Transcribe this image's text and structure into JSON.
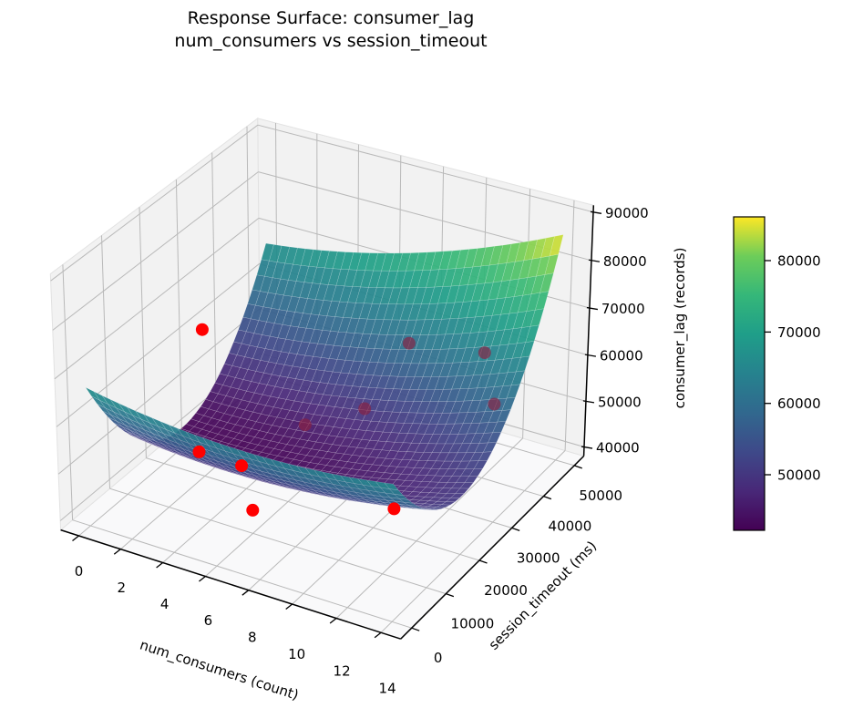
{
  "title": {
    "line1": "Response Surface: consumer_lag",
    "line2": "num_consumers vs session_timeout"
  },
  "chart_data": {
    "type": "surface_3d",
    "view": {
      "elev": 30,
      "azim": -60
    },
    "x_axis": {
      "label": "num_consumers (count)",
      "ticks": [
        0,
        2,
        4,
        6,
        8,
        10,
        12,
        14
      ],
      "data_range": [
        0,
        14
      ],
      "lim": [
        -0.875,
        14.875
      ]
    },
    "y_axis": {
      "label": "session_timeout (ms)",
      "ticks": [
        0,
        10000,
        20000,
        30000,
        40000,
        50000
      ],
      "data_range": [
        0,
        50000
      ],
      "lim": [
        -3125,
        53125
      ]
    },
    "z_axis": {
      "label": "consumer_lag (records)",
      "ticks": [
        40000,
        50000,
        60000,
        70000,
        80000,
        90000
      ],
      "lim": [
        38000,
        91400
      ]
    },
    "surface": {
      "colormap": "viridis",
      "grid_n": 36,
      "model": "consumer_lag = b0 + by*t + byy*t^2 + bxy*c*t + bxx*(c-7.5)^2 (c = num_consumers, t = session_timeout; fitted visually from pixels)",
      "coeffs": {
        "b0": 64000,
        "by": -2.0,
        "byy": 4e-05,
        "bxy": 0.028,
        "bxx": 60
      },
      "approx_value_range": [
        43000,
        87000
      ]
    },
    "scatter": {
      "color": "#ff0000",
      "marker_radius_px": 7,
      "points": [
        {
          "num_consumers": 2,
          "session_timeout": 20000,
          "consumer_lag": 69500,
          "far": false
        },
        {
          "num_consumers": 3.5,
          "session_timeout": 10000,
          "consumer_lag": 52000,
          "far": false
        },
        {
          "num_consumers": 5.5,
          "session_timeout": 10000,
          "consumer_lag": 51800,
          "far": false
        },
        {
          "num_consumers": 6,
          "session_timeout": 10000,
          "consumer_lag": 43000,
          "far": false
        },
        {
          "num_consumers": 12.5,
          "session_timeout": 10000,
          "consumer_lag": 52500,
          "far": false
        },
        {
          "num_consumers": 6,
          "session_timeout": 25000,
          "consumer_lag": 51300,
          "far": true
        },
        {
          "num_consumers": 8,
          "session_timeout": 30000,
          "consumer_lag": 54200,
          "far": true
        },
        {
          "num_consumers": 8.5,
          "session_timeout": 40000,
          "consumer_lag": 62500,
          "far": true
        },
        {
          "num_consumers": 12,
          "session_timeout": 40000,
          "consumer_lag": 65000,
          "far": true
        },
        {
          "num_consumers": 12.5,
          "session_timeout": 40000,
          "consumer_lag": 54700,
          "far": true
        }
      ]
    },
    "colorbar": {
      "ticks": [
        50000,
        60000,
        70000,
        80000
      ]
    },
    "colors": {
      "viridis": [
        "#440154",
        "#482878",
        "#3e4989",
        "#31688e",
        "#26828e",
        "#1f9e89",
        "#35b779",
        "#6dcd59",
        "#fde725"
      ],
      "scatter": "#ff0000",
      "scatter_far_blend": "#8b2040",
      "pane_wall": "#f2f2f2",
      "pane_floor": "#f9f9fa",
      "grid": "#b9b9b9",
      "spine": "#000000"
    }
  }
}
